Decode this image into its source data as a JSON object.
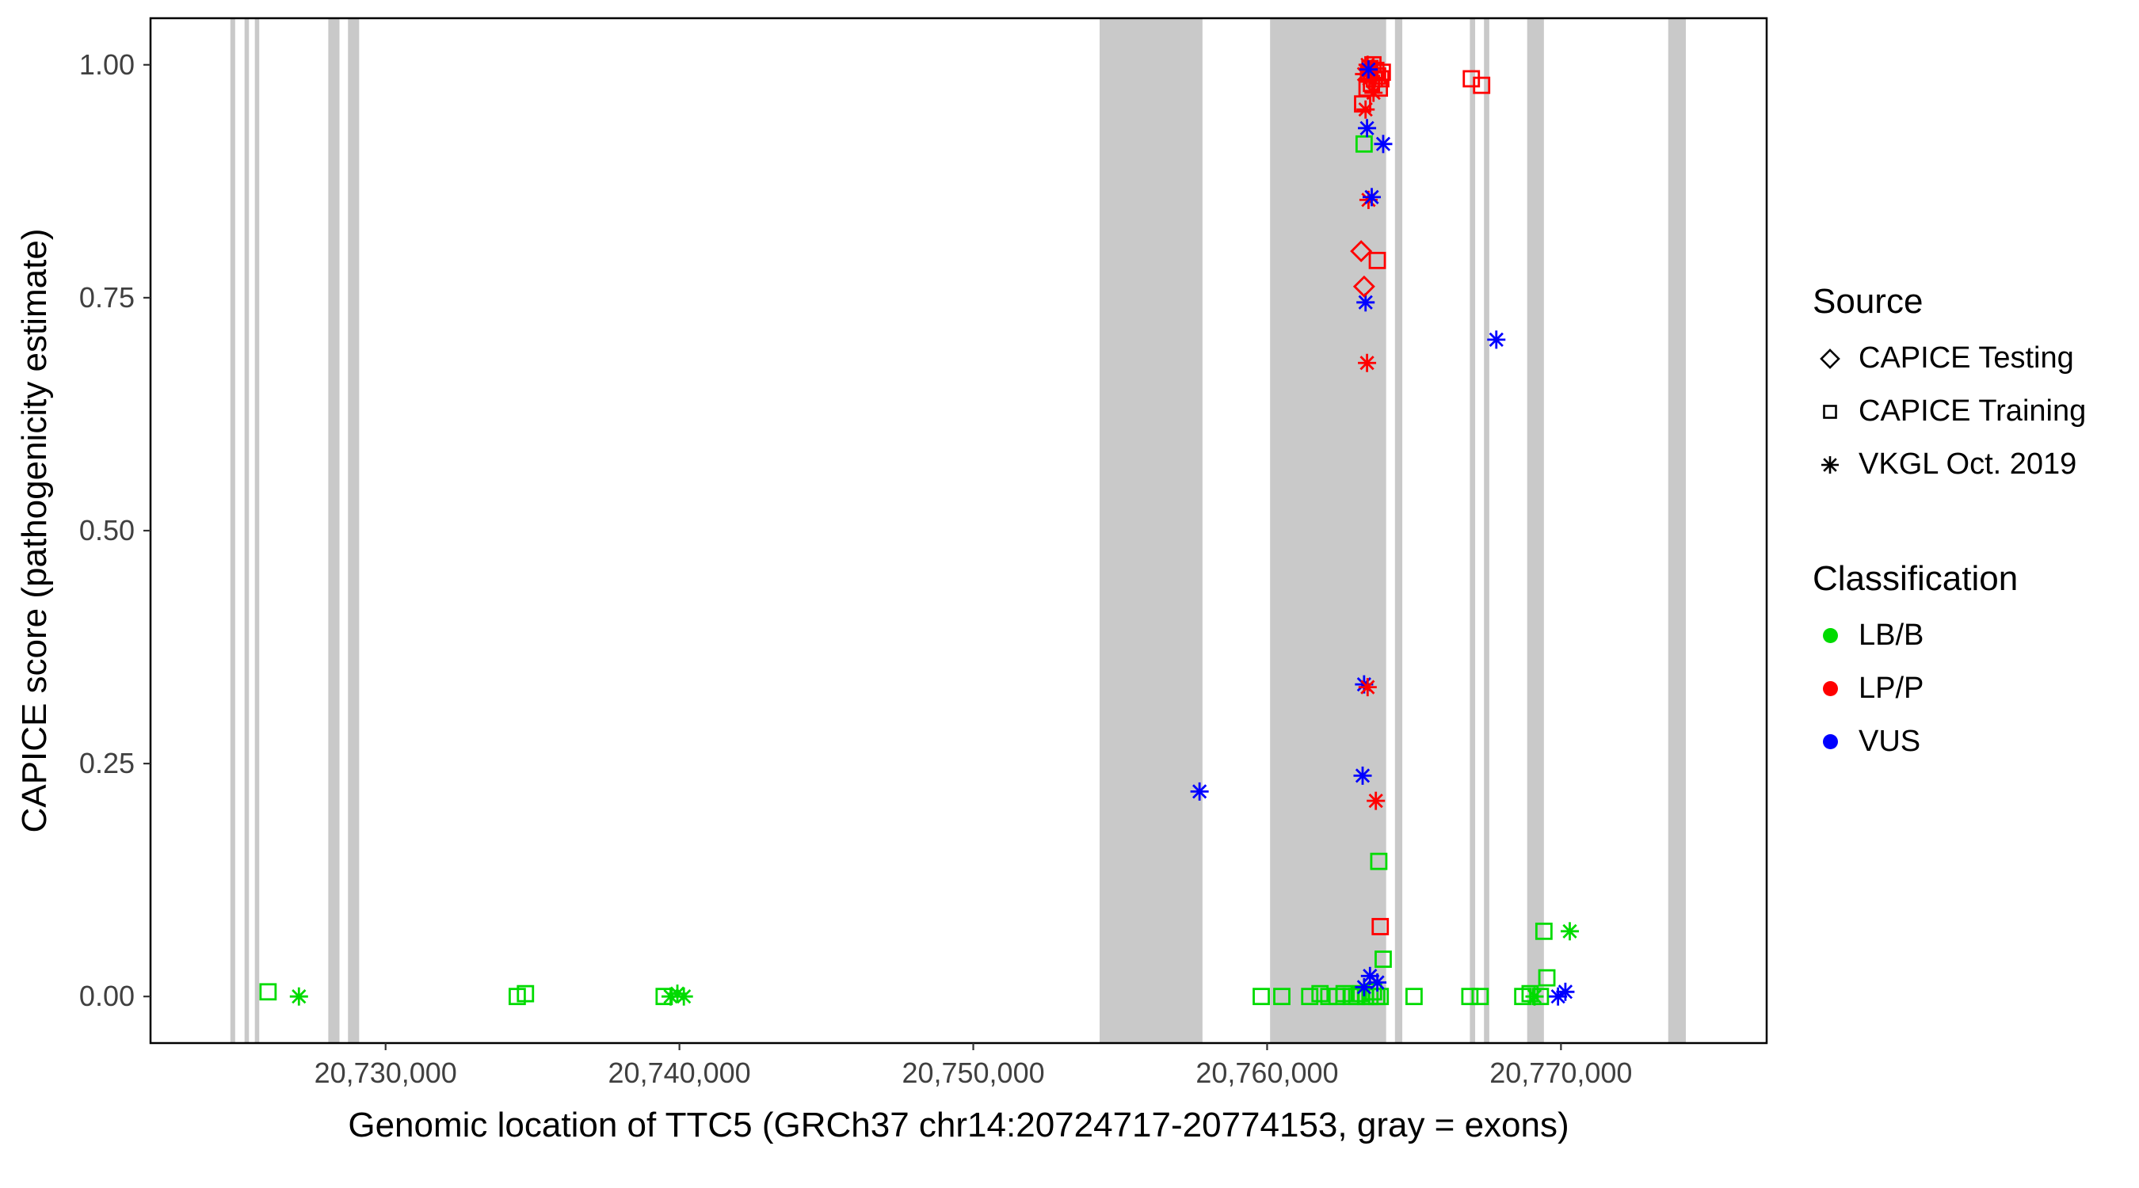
{
  "figure": {
    "x_axis_title": "Genomic location of TTC5 (GRCh37 chr14:20724717-20774153, gray = exons)",
    "y_axis_title": "CAPICE score (pathogenicity estimate)"
  },
  "legend": {
    "source": {
      "title": "Source",
      "items": [
        {
          "shape": "diamond",
          "label": "CAPICE Testing"
        },
        {
          "shape": "square",
          "label": "CAPICE Training"
        },
        {
          "shape": "asterisk",
          "label": "VKGL Oct. 2019"
        }
      ]
    },
    "classification": {
      "title": "Classification",
      "items": [
        {
          "color": "#00DB00",
          "label": "LB/B"
        },
        {
          "color": "#FF0000",
          "label": "LP/P"
        },
        {
          "color": "#0000FF",
          "label": "VUS"
        }
      ]
    }
  },
  "chart_data": {
    "type": "scatter",
    "title": "",
    "xlabel": "Genomic location of TTC5 (GRCh37 chr14:20724717-20774153, gray = exons)",
    "ylabel": "CAPICE score (pathogenicity estimate)",
    "xlim": [
      20722000,
      20777000
    ],
    "ylim": [
      -0.05,
      1.05
    ],
    "grid": false,
    "legend_position": "right",
    "x_ticks": [
      {
        "value": 20730000,
        "label": "20,730,000"
      },
      {
        "value": 20740000,
        "label": "20,740,000"
      },
      {
        "value": 20750000,
        "label": "20,750,000"
      },
      {
        "value": 20760000,
        "label": "20,760,000"
      },
      {
        "value": 20770000,
        "label": "20,770,000"
      }
    ],
    "y_ticks": [
      {
        "value": 0.0,
        "label": "0.00"
      },
      {
        "value": 0.25,
        "label": "0.25"
      },
      {
        "value": 0.5,
        "label": "0.50"
      },
      {
        "value": 0.75,
        "label": "0.75"
      },
      {
        "value": 1.0,
        "label": "1.00"
      }
    ],
    "exon_color": "#C9C9C9",
    "exons": [
      [
        20724717,
        20724880
      ],
      [
        20725200,
        20725350
      ],
      [
        20725550,
        20725700
      ],
      [
        20728050,
        20728430
      ],
      [
        20728720,
        20729100
      ],
      [
        20754300,
        20757800
      ],
      [
        20760100,
        20764050
      ],
      [
        20764350,
        20764600
      ],
      [
        20766900,
        20767080
      ],
      [
        20767380,
        20767560
      ],
      [
        20768850,
        20769420
      ],
      [
        20773650,
        20774250
      ]
    ],
    "classification_colors": {
      "LB/B": "#00DB00",
      "LP/P": "#FF0000",
      "VUS": "#0000FF"
    },
    "shape_meanings": {
      "diamond": "CAPICE Testing",
      "square": "CAPICE Training",
      "asterisk": "VKGL Oct. 2019"
    },
    "points": [
      {
        "x": 20726000,
        "y": 0.005,
        "shape": "square",
        "cls": "LB/B"
      },
      {
        "x": 20727050,
        "y": 0.0,
        "shape": "asterisk",
        "cls": "LB/B"
      },
      {
        "x": 20734480,
        "y": 0.0,
        "shape": "square",
        "cls": "LB/B"
      },
      {
        "x": 20734760,
        "y": 0.003,
        "shape": "square",
        "cls": "LB/B"
      },
      {
        "x": 20739480,
        "y": 0.0,
        "shape": "square",
        "cls": "LB/B"
      },
      {
        "x": 20739700,
        "y": 0.0,
        "shape": "asterisk",
        "cls": "LB/B"
      },
      {
        "x": 20739930,
        "y": 0.003,
        "shape": "asterisk",
        "cls": "LB/B"
      },
      {
        "x": 20740150,
        "y": 0.0,
        "shape": "asterisk",
        "cls": "LB/B"
      },
      {
        "x": 20759800,
        "y": 0.0,
        "shape": "square",
        "cls": "LB/B"
      },
      {
        "x": 20760500,
        "y": 0.0,
        "shape": "square",
        "cls": "LB/B"
      },
      {
        "x": 20761450,
        "y": 0.0,
        "shape": "square",
        "cls": "LB/B"
      },
      {
        "x": 20761800,
        "y": 0.003,
        "shape": "square",
        "cls": "LB/B"
      },
      {
        "x": 20762100,
        "y": 0.0,
        "shape": "square",
        "cls": "LB/B"
      },
      {
        "x": 20762380,
        "y": 0.0,
        "shape": "square",
        "cls": "LB/B"
      },
      {
        "x": 20762620,
        "y": 0.003,
        "shape": "square",
        "cls": "LB/B"
      },
      {
        "x": 20762860,
        "y": 0.0,
        "shape": "square",
        "cls": "LB/B"
      },
      {
        "x": 20763050,
        "y": 0.0,
        "shape": "square",
        "cls": "LB/B"
      },
      {
        "x": 20763200,
        "y": 0.003,
        "shape": "square",
        "cls": "LB/B"
      },
      {
        "x": 20763350,
        "y": 0.0,
        "shape": "square",
        "cls": "LB/B"
      },
      {
        "x": 20763500,
        "y": 0.0,
        "shape": "square",
        "cls": "LB/B"
      },
      {
        "x": 20763620,
        "y": 0.005,
        "shape": "square",
        "cls": "LB/B"
      },
      {
        "x": 20763730,
        "y": 0.0,
        "shape": "square",
        "cls": "LB/B"
      },
      {
        "x": 20763850,
        "y": 0.0,
        "shape": "square",
        "cls": "LB/B"
      },
      {
        "x": 20763950,
        "y": 0.04,
        "shape": "square",
        "cls": "LB/B"
      },
      {
        "x": 20763800,
        "y": 0.145,
        "shape": "square",
        "cls": "LB/B"
      },
      {
        "x": 20765000,
        "y": 0.0,
        "shape": "square",
        "cls": "LB/B"
      },
      {
        "x": 20763300,
        "y": 0.01,
        "shape": "asterisk",
        "cls": "VUS"
      },
      {
        "x": 20763500,
        "y": 0.022,
        "shape": "asterisk",
        "cls": "VUS"
      },
      {
        "x": 20763750,
        "y": 0.015,
        "shape": "asterisk",
        "cls": "VUS"
      },
      {
        "x": 20763850,
        "y": 0.075,
        "shape": "square",
        "cls": "LP/P"
      },
      {
        "x": 20766900,
        "y": 0.0,
        "shape": "square",
        "cls": "LB/B"
      },
      {
        "x": 20767250,
        "y": 0.0,
        "shape": "square",
        "cls": "LB/B"
      },
      {
        "x": 20768700,
        "y": 0.0,
        "shape": "square",
        "cls": "LB/B"
      },
      {
        "x": 20768950,
        "y": 0.003,
        "shape": "square",
        "cls": "LB/B"
      },
      {
        "x": 20769100,
        "y": 0.0,
        "shape": "asterisk",
        "cls": "LB/B"
      },
      {
        "x": 20769300,
        "y": 0.0,
        "shape": "square",
        "cls": "LB/B"
      },
      {
        "x": 20769520,
        "y": 0.02,
        "shape": "square",
        "cls": "LB/B"
      },
      {
        "x": 20769420,
        "y": 0.07,
        "shape": "square",
        "cls": "LB/B"
      },
      {
        "x": 20770300,
        "y": 0.07,
        "shape": "asterisk",
        "cls": "LB/B"
      },
      {
        "x": 20769900,
        "y": 0.0,
        "shape": "asterisk",
        "cls": "VUS"
      },
      {
        "x": 20770150,
        "y": 0.005,
        "shape": "asterisk",
        "cls": "VUS"
      },
      {
        "x": 20757700,
        "y": 0.22,
        "shape": "asterisk",
        "cls": "VUS"
      },
      {
        "x": 20763250,
        "y": 0.237,
        "shape": "asterisk",
        "cls": "VUS"
      },
      {
        "x": 20763700,
        "y": 0.21,
        "shape": "asterisk",
        "cls": "LP/P"
      },
      {
        "x": 20763300,
        "y": 0.335,
        "shape": "asterisk",
        "cls": "VUS"
      },
      {
        "x": 20763420,
        "y": 0.332,
        "shape": "asterisk",
        "cls": "LP/P"
      },
      {
        "x": 20763400,
        "y": 0.68,
        "shape": "asterisk",
        "cls": "LP/P"
      },
      {
        "x": 20763350,
        "y": 0.745,
        "shape": "asterisk",
        "cls": "VUS"
      },
      {
        "x": 20763300,
        "y": 0.762,
        "shape": "diamond",
        "cls": "LP/P"
      },
      {
        "x": 20763200,
        "y": 0.8,
        "shape": "diamond",
        "cls": "LP/P"
      },
      {
        "x": 20763750,
        "y": 0.79,
        "shape": "square",
        "cls": "LP/P"
      },
      {
        "x": 20763450,
        "y": 0.855,
        "shape": "asterisk",
        "cls": "LP/P"
      },
      {
        "x": 20763560,
        "y": 0.858,
        "shape": "asterisk",
        "cls": "VUS"
      },
      {
        "x": 20763300,
        "y": 0.915,
        "shape": "square",
        "cls": "LB/B"
      },
      {
        "x": 20763950,
        "y": 0.915,
        "shape": "asterisk",
        "cls": "VUS"
      },
      {
        "x": 20763400,
        "y": 0.932,
        "shape": "asterisk",
        "cls": "VUS"
      },
      {
        "x": 20767800,
        "y": 0.705,
        "shape": "asterisk",
        "cls": "VUS"
      },
      {
        "x": 20763250,
        "y": 0.958,
        "shape": "square",
        "cls": "LP/P"
      },
      {
        "x": 20763350,
        "y": 0.952,
        "shape": "asterisk",
        "cls": "LP/P"
      },
      {
        "x": 20763400,
        "y": 0.975,
        "shape": "square",
        "cls": "LP/P"
      },
      {
        "x": 20763450,
        "y": 0.99,
        "shape": "square",
        "cls": "LP/P"
      },
      {
        "x": 20763500,
        "y": 0.996,
        "shape": "square",
        "cls": "LP/P"
      },
      {
        "x": 20763550,
        "y": 0.98,
        "shape": "square",
        "cls": "LP/P"
      },
      {
        "x": 20763600,
        "y": 1.0,
        "shape": "square",
        "cls": "LP/P"
      },
      {
        "x": 20763650,
        "y": 0.985,
        "shape": "square",
        "cls": "LP/P"
      },
      {
        "x": 20763700,
        "y": 0.994,
        "shape": "square",
        "cls": "LP/P"
      },
      {
        "x": 20763760,
        "y": 0.988,
        "shape": "square",
        "cls": "LP/P"
      },
      {
        "x": 20763820,
        "y": 0.975,
        "shape": "square",
        "cls": "LP/P"
      },
      {
        "x": 20763870,
        "y": 0.985,
        "shape": "square",
        "cls": "LP/P"
      },
      {
        "x": 20763920,
        "y": 0.992,
        "shape": "square",
        "cls": "LP/P"
      },
      {
        "x": 20763300,
        "y": 0.99,
        "shape": "asterisk",
        "cls": "LP/P"
      },
      {
        "x": 20763480,
        "y": 0.985,
        "shape": "asterisk",
        "cls": "LP/P"
      },
      {
        "x": 20763420,
        "y": 1.0,
        "shape": "asterisk",
        "cls": "LP/P"
      },
      {
        "x": 20763620,
        "y": 0.97,
        "shape": "asterisk",
        "cls": "LP/P"
      },
      {
        "x": 20763450,
        "y": 0.995,
        "shape": "asterisk",
        "cls": "VUS"
      },
      {
        "x": 20766950,
        "y": 0.985,
        "shape": "square",
        "cls": "LP/P"
      },
      {
        "x": 20767300,
        "y": 0.978,
        "shape": "square",
        "cls": "LP/P"
      }
    ]
  }
}
